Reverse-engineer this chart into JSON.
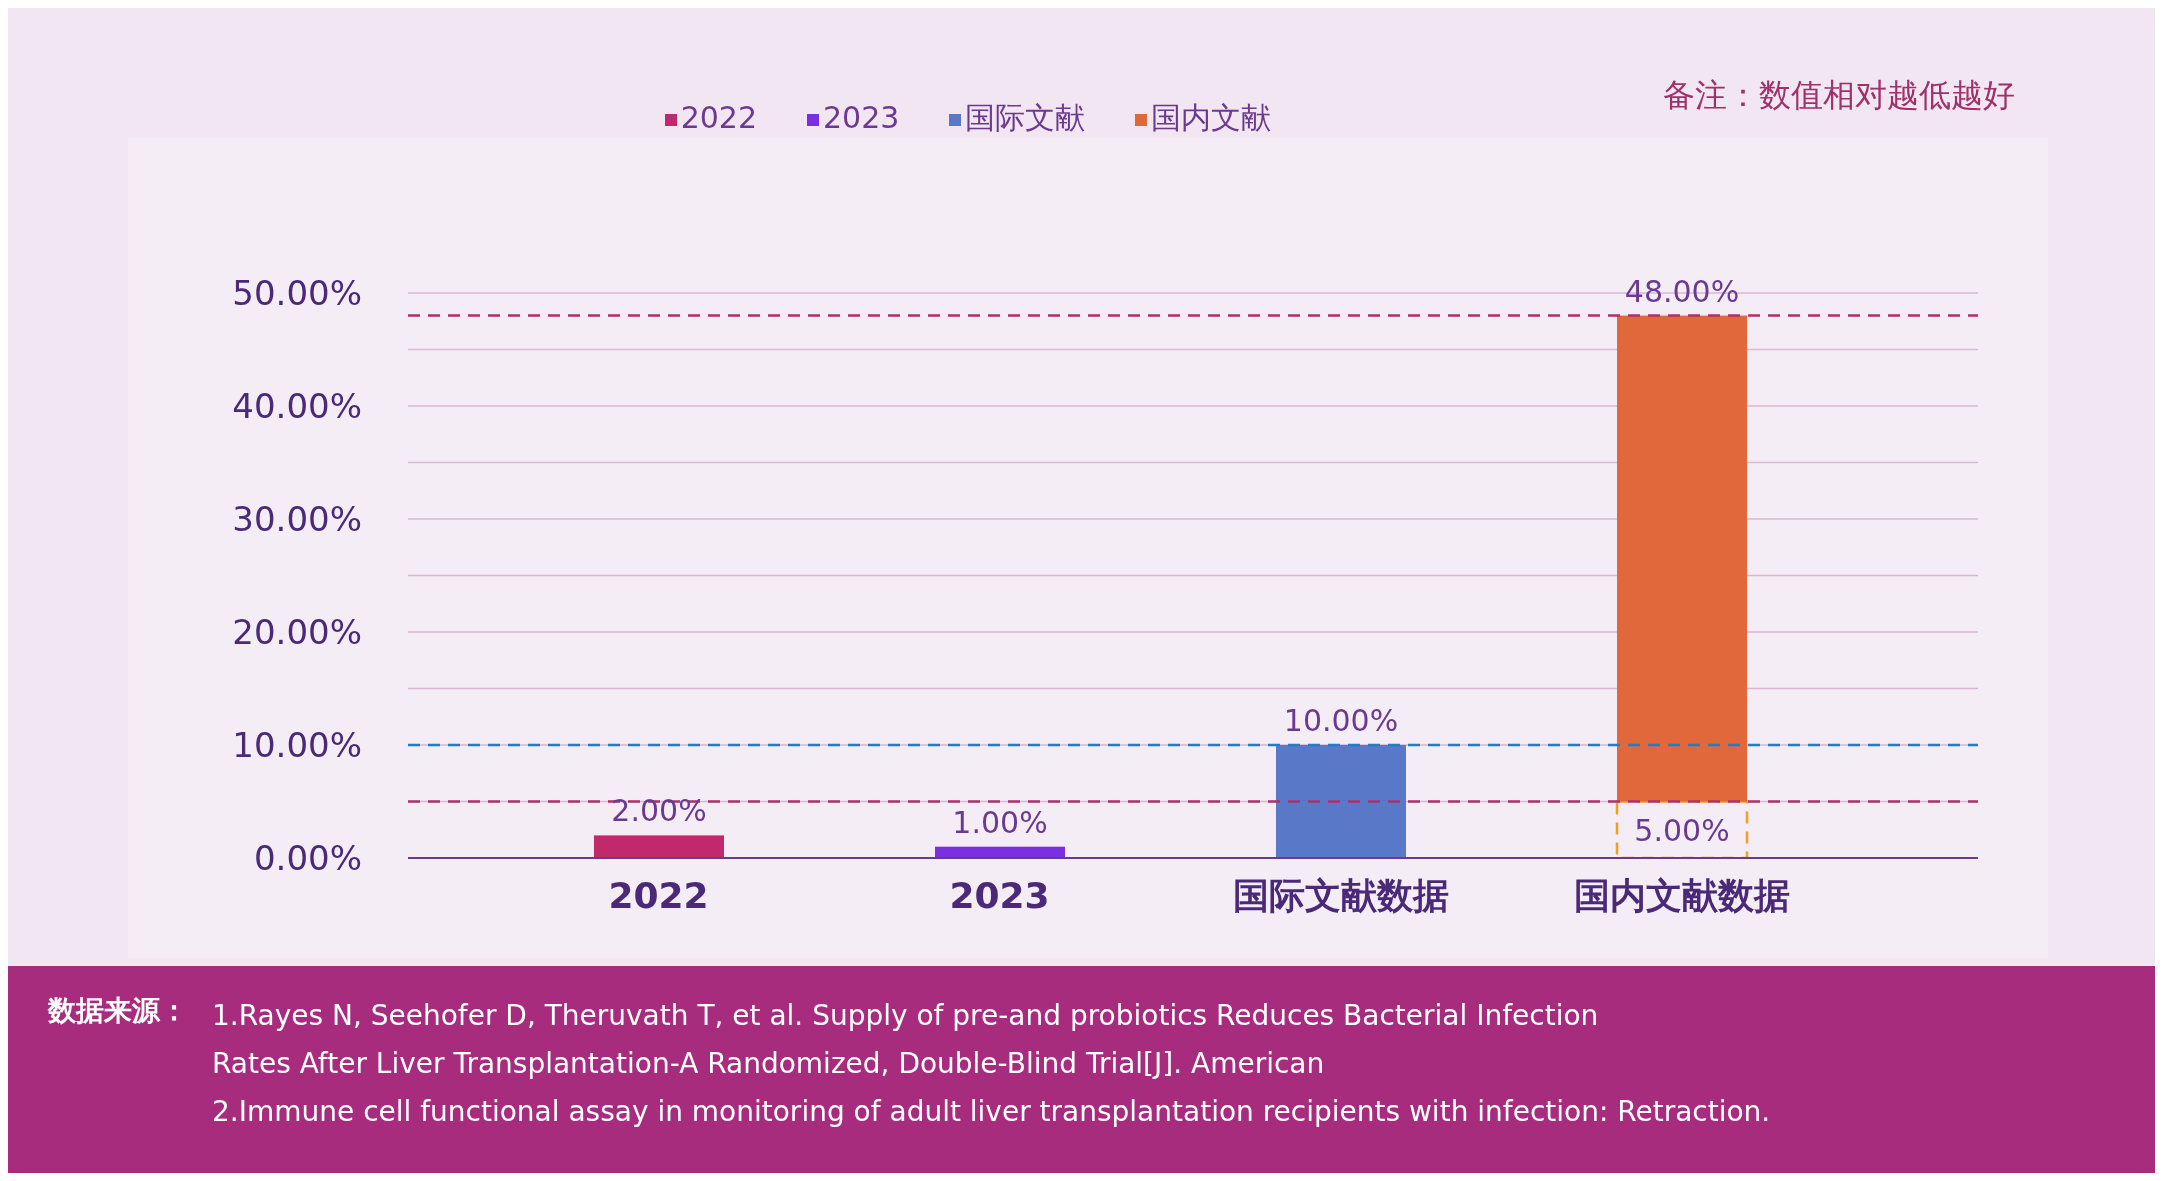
{
  "chart_data": {
    "type": "bar",
    "categories": [
      "2022",
      "2023",
      "国际文献数据",
      "国内文献数据"
    ],
    "stacked": true,
    "series": [
      {
        "name": "2022",
        "color": "#c0296c",
        "values": [
          2,
          null,
          null,
          null
        ],
        "value_labels": [
          "2.00%",
          null,
          null,
          null
        ]
      },
      {
        "name": "2023",
        "color": "#7a2fe0",
        "values": [
          null,
          1,
          null,
          null
        ],
        "value_labels": [
          null,
          "1.00%",
          null,
          null
        ]
      },
      {
        "name": "国际文献",
        "color": "#5a78c8",
        "values": [
          null,
          null,
          10,
          null
        ],
        "value_labels": [
          null,
          null,
          "10.00%",
          null
        ]
      },
      {
        "color": "#f0a020",
        "line_style": "dashed",
        "values": [
          null,
          null,
          null,
          5
        ],
        "value_labels": [
          null,
          null,
          null,
          "5.00%"
        ]
      },
      {
        "name": "国内文献",
        "color": "#e0683a",
        "values": [
          null,
          null,
          null,
          43
        ]
      }
    ],
    "totals": [
      null,
      null,
      null,
      "48.00%"
    ],
    "ylim": [
      0,
      50
    ],
    "yticks": [
      {
        "value": 0,
        "label": "0.00%"
      },
      {
        "value": 5,
        "label": null
      },
      {
        "value": 10,
        "label": "10.00%"
      },
      {
        "value": 15,
        "label": null
      },
      {
        "value": 20,
        "label": "20.00%"
      },
      {
        "value": 25,
        "label": null
      },
      {
        "value": 30,
        "label": "30.00%"
      },
      {
        "value": 35,
        "label": null
      },
      {
        "value": 40,
        "label": "40.00%"
      },
      {
        "value": 45,
        "label": null
      },
      {
        "value": 50,
        "label": "50.00%"
      }
    ],
    "grid": "y",
    "legend": "top",
    "ref_lines": [
      {
        "axis": "y",
        "value": 48,
        "color": "#b0306a",
        "line_style": "dashed"
      },
      {
        "axis": "y",
        "value": 10,
        "color": "#1f7fc4",
        "line_style": "dashed"
      },
      {
        "axis": "y",
        "value": 5,
        "color": "#b0306a",
        "line_style": "dashed"
      }
    ],
    "annotations": [
      "备注：数值相对越低越好",
      "数据来源：",
      "1.Rayes N, Seehofer D, Theruvath T, et al. Supply of pre-and probiotics Reduces Bacterial Infection Rates After Liver Transplantation-A Randomized, Double-Blind Trial[J]. American",
      "2.Immune cell functional assay in monitoring of adult liver transplantation recipients with infection: Retraction."
    ]
  }
}
